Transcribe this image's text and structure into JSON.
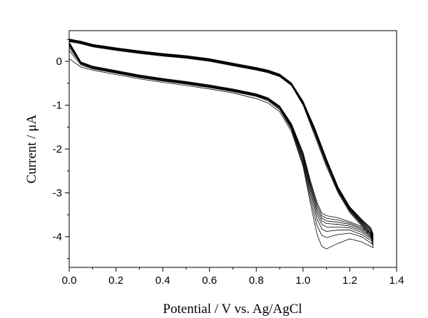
{
  "chart_data": {
    "type": "line",
    "title": "",
    "xlabel": "Potential / V vs. Ag/AgCl",
    "ylabel": "Current / μA",
    "xlim": [
      0.0,
      1.4
    ],
    "ylim": [
      -4.7,
      0.7
    ],
    "x_ticks": [
      0.0,
      0.2,
      0.4,
      0.6,
      0.8,
      1.0,
      1.2,
      1.4
    ],
    "x_tick_labels": [
      "0.0",
      "0.2",
      "0.4",
      "0.6",
      "0.8",
      "1.0",
      "1.2",
      "1.4"
    ],
    "y_ticks": [
      0,
      -1,
      -2,
      -3,
      -4
    ],
    "y_tick_labels": [
      "0",
      "-1",
      "-2",
      "-3",
      "-4"
    ],
    "grid": false,
    "legend": "none",
    "series": [
      {
        "x": [
          0.0,
          0.05,
          0.1,
          0.2,
          0.3,
          0.4,
          0.5,
          0.6,
          0.7,
          0.8,
          0.85,
          0.9,
          0.95,
          1.0,
          1.03,
          1.06,
          1.08,
          1.1,
          1.15,
          1.2,
          1.25,
          1.3,
          1.29,
          1.25,
          1.2,
          1.15,
          1.1,
          1.05,
          1.0,
          0.95,
          0.9,
          0.85,
          0.8,
          0.7,
          0.6,
          0.5,
          0.4,
          0.3,
          0.2,
          0.1,
          0.05,
          0.0
        ],
        "y": [
          0.06,
          -0.13,
          -0.2,
          -0.3,
          -0.4,
          -0.48,
          -0.55,
          -0.63,
          -0.72,
          -0.85,
          -0.95,
          -1.15,
          -1.6,
          -2.4,
          -3.2,
          -3.95,
          -4.22,
          -4.28,
          -4.15,
          -4.05,
          -4.12,
          -4.25,
          -4.0,
          -3.75,
          -3.45,
          -3.0,
          -2.4,
          -1.7,
          -1.0,
          -0.55,
          -0.35,
          -0.26,
          -0.2,
          -0.1,
          0.0,
          0.07,
          0.12,
          0.18,
          0.25,
          0.33,
          0.4,
          0.45
        ]
      },
      {
        "x": [
          0.0,
          0.05,
          0.1,
          0.2,
          0.3,
          0.4,
          0.5,
          0.6,
          0.7,
          0.8,
          0.85,
          0.9,
          0.95,
          1.0,
          1.03,
          1.06,
          1.08,
          1.1,
          1.15,
          1.2,
          1.25,
          1.3,
          1.29,
          1.25,
          1.2,
          1.15,
          1.1,
          1.05,
          1.0,
          0.95,
          0.9,
          0.85,
          0.8,
          0.7,
          0.6,
          0.5,
          0.4,
          0.3,
          0.2,
          0.1,
          0.05,
          0.0
        ],
        "y": [
          0.25,
          -0.08,
          -0.17,
          -0.27,
          -0.37,
          -0.45,
          -0.52,
          -0.6,
          -0.69,
          -0.8,
          -0.9,
          -1.1,
          -1.55,
          -2.35,
          -3.1,
          -3.75,
          -3.97,
          -4.02,
          -3.95,
          -3.92,
          -4.0,
          -4.18,
          -3.96,
          -3.72,
          -3.42,
          -2.97,
          -2.35,
          -1.65,
          -0.98,
          -0.54,
          -0.34,
          -0.25,
          -0.19,
          -0.09,
          0.01,
          0.08,
          0.13,
          0.19,
          0.26,
          0.34,
          0.41,
          0.46
        ]
      },
      {
        "x": [
          0.0,
          0.05,
          0.1,
          0.2,
          0.3,
          0.4,
          0.5,
          0.6,
          0.7,
          0.8,
          0.85,
          0.9,
          0.95,
          1.0,
          1.03,
          1.06,
          1.08,
          1.1,
          1.15,
          1.2,
          1.25,
          1.3,
          1.29,
          1.25,
          1.2,
          1.15,
          1.1,
          1.05,
          1.0,
          0.95,
          0.9,
          0.85,
          0.8,
          0.7,
          0.6,
          0.5,
          0.4,
          0.3,
          0.2,
          0.1,
          0.05,
          0.0
        ],
        "y": [
          0.32,
          -0.06,
          -0.16,
          -0.26,
          -0.36,
          -0.44,
          -0.51,
          -0.59,
          -0.68,
          -0.79,
          -0.88,
          -1.08,
          -1.52,
          -2.3,
          -3.0,
          -3.6,
          -3.82,
          -3.88,
          -3.85,
          -3.85,
          -3.95,
          -4.12,
          -3.93,
          -3.7,
          -3.4,
          -2.95,
          -2.32,
          -1.62,
          -0.96,
          -0.53,
          -0.33,
          -0.24,
          -0.18,
          -0.08,
          0.02,
          0.09,
          0.14,
          0.2,
          0.27,
          0.35,
          0.42,
          0.47
        ]
      },
      {
        "x": [
          0.0,
          0.05,
          0.1,
          0.2,
          0.3,
          0.4,
          0.5,
          0.6,
          0.7,
          0.8,
          0.85,
          0.9,
          0.95,
          1.0,
          1.03,
          1.06,
          1.08,
          1.1,
          1.15,
          1.2,
          1.25,
          1.3,
          1.29,
          1.25,
          1.2,
          1.15,
          1.1,
          1.05,
          1.0,
          0.95,
          0.9,
          0.85,
          0.8,
          0.7,
          0.6,
          0.5,
          0.4,
          0.3,
          0.2,
          0.1,
          0.05,
          0.0
        ],
        "y": [
          0.36,
          -0.05,
          -0.15,
          -0.25,
          -0.35,
          -0.43,
          -0.5,
          -0.58,
          -0.67,
          -0.78,
          -0.87,
          -1.06,
          -1.5,
          -2.25,
          -2.92,
          -3.5,
          -3.72,
          -3.78,
          -3.78,
          -3.8,
          -3.9,
          -4.08,
          -3.9,
          -3.68,
          -3.38,
          -2.93,
          -2.3,
          -1.6,
          -0.95,
          -0.52,
          -0.32,
          -0.23,
          -0.17,
          -0.07,
          0.03,
          0.1,
          0.15,
          0.21,
          0.28,
          0.36,
          0.43,
          0.48
        ]
      },
      {
        "x": [
          0.0,
          0.05,
          0.1,
          0.2,
          0.3,
          0.4,
          0.5,
          0.6,
          0.7,
          0.8,
          0.85,
          0.9,
          0.95,
          1.0,
          1.03,
          1.06,
          1.08,
          1.1,
          1.15,
          1.2,
          1.25,
          1.3,
          1.29,
          1.25,
          1.2,
          1.15,
          1.1,
          1.05,
          1.0,
          0.95,
          0.9,
          0.85,
          0.8,
          0.7,
          0.6,
          0.5,
          0.4,
          0.3,
          0.2,
          0.1,
          0.05,
          0.0
        ],
        "y": [
          0.38,
          -0.04,
          -0.14,
          -0.24,
          -0.34,
          -0.42,
          -0.49,
          -0.57,
          -0.66,
          -0.77,
          -0.86,
          -1.05,
          -1.48,
          -2.2,
          -2.85,
          -3.42,
          -3.64,
          -3.7,
          -3.72,
          -3.76,
          -3.86,
          -4.05,
          -3.87,
          -3.66,
          -3.36,
          -2.91,
          -2.28,
          -1.58,
          -0.94,
          -0.51,
          -0.31,
          -0.22,
          -0.16,
          -0.06,
          0.04,
          0.11,
          0.16,
          0.22,
          0.29,
          0.37,
          0.44,
          0.49
        ]
      },
      {
        "x": [
          0.0,
          0.05,
          0.1,
          0.2,
          0.3,
          0.4,
          0.5,
          0.6,
          0.7,
          0.8,
          0.85,
          0.9,
          0.95,
          1.0,
          1.03,
          1.06,
          1.08,
          1.1,
          1.15,
          1.2,
          1.25,
          1.3,
          1.29,
          1.25,
          1.2,
          1.15,
          1.1,
          1.05,
          1.0,
          0.95,
          0.9,
          0.85,
          0.8,
          0.7,
          0.6,
          0.5,
          0.4,
          0.3,
          0.2,
          0.1,
          0.05,
          0.0
        ],
        "y": [
          0.4,
          -0.03,
          -0.13,
          -0.23,
          -0.33,
          -0.41,
          -0.48,
          -0.56,
          -0.65,
          -0.76,
          -0.85,
          -1.04,
          -1.46,
          -2.16,
          -2.8,
          -3.35,
          -3.58,
          -3.64,
          -3.67,
          -3.72,
          -3.83,
          -4.02,
          -3.85,
          -3.64,
          -3.35,
          -2.9,
          -2.26,
          -1.56,
          -0.93,
          -0.5,
          -0.3,
          -0.21,
          -0.15,
          -0.05,
          0.05,
          0.12,
          0.17,
          0.23,
          0.3,
          0.38,
          0.45,
          0.5
        ]
      },
      {
        "x": [
          0.0,
          0.05,
          0.1,
          0.2,
          0.3,
          0.4,
          0.5,
          0.6,
          0.7,
          0.8,
          0.85,
          0.9,
          0.95,
          1.0,
          1.03,
          1.06,
          1.08,
          1.1,
          1.15,
          1.2,
          1.25,
          1.3,
          1.29,
          1.25,
          1.2,
          1.15,
          1.1,
          1.05,
          1.0,
          0.95,
          0.9,
          0.85,
          0.8,
          0.7,
          0.6,
          0.5,
          0.4,
          0.3,
          0.2,
          0.1,
          0.05,
          0.0
        ],
        "y": [
          0.42,
          -0.02,
          -0.12,
          -0.22,
          -0.32,
          -0.4,
          -0.47,
          -0.55,
          -0.64,
          -0.75,
          -0.84,
          -1.03,
          -1.44,
          -2.12,
          -2.75,
          -3.28,
          -3.52,
          -3.58,
          -3.62,
          -3.69,
          -3.8,
          -3.98,
          -3.82,
          -3.62,
          -3.33,
          -2.88,
          -2.24,
          -1.54,
          -0.92,
          -0.5,
          -0.3,
          -0.21,
          -0.15,
          -0.05,
          0.05,
          0.12,
          0.17,
          0.23,
          0.3,
          0.38,
          0.45,
          0.5
        ]
      },
      {
        "x": [
          0.0,
          0.05,
          0.1,
          0.2,
          0.3,
          0.4,
          0.5,
          0.6,
          0.7,
          0.8,
          0.85,
          0.9,
          0.95,
          1.0,
          1.03,
          1.06,
          1.08,
          1.1,
          1.15,
          1.2,
          1.25,
          1.3,
          1.29,
          1.25,
          1.2,
          1.15,
          1.1,
          1.05,
          1.0,
          0.95,
          0.9,
          0.85,
          0.8,
          0.7,
          0.6,
          0.5,
          0.4,
          0.3,
          0.2,
          0.1,
          0.05,
          0.0
        ],
        "y": [
          0.44,
          -0.01,
          -0.11,
          -0.21,
          -0.31,
          -0.39,
          -0.46,
          -0.54,
          -0.63,
          -0.74,
          -0.83,
          -1.02,
          -1.42,
          -2.08,
          -2.7,
          -3.22,
          -3.46,
          -3.52,
          -3.57,
          -3.66,
          -3.77,
          -3.95,
          -3.8,
          -3.6,
          -3.32,
          -2.87,
          -2.22,
          -1.52,
          -0.91,
          -0.49,
          -0.29,
          -0.2,
          -0.14,
          -0.04,
          0.06,
          0.13,
          0.18,
          0.24,
          0.31,
          0.39,
          0.46,
          0.51
        ]
      }
    ]
  }
}
